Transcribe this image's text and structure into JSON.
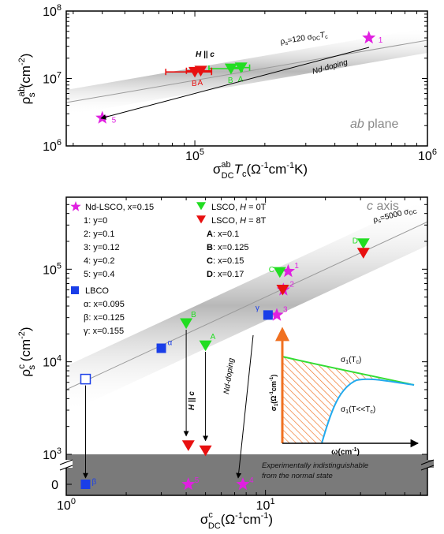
{
  "colors": {
    "magenta": "#e020e0",
    "red": "#e81010",
    "green": "#22dd22",
    "blue": "#1a3ee8",
    "band": "#bdbdbd",
    "gray_region": "#7a7a7a",
    "hatch": "#f07020",
    "orange": "#f07020",
    "cyan": "#22aaee",
    "inset_green": "#33dd33"
  },
  "chart_data": [
    {
      "type": "scatter",
      "title": "",
      "xlabel_main": "σ",
      "xlabel_sup": "ab",
      "xlabel_sub": "DC",
      "xlabel_rest": "T",
      "xlabel_rest_sub": "c",
      "xlabel_units": "(Ω",
      "xlabel_units_sup1": "-1",
      "xlabel_units_mid": "cm",
      "xlabel_units_sup2": "-1",
      "xlabel_units_end": "K)",
      "ylabel_main": "ρ",
      "ylabel_sup": "ab",
      "ylabel_sub": "s",
      "ylabel_units": "(cm",
      "ylabel_units_sup": "-2",
      "ylabel_units_end": ")",
      "xscale": "log",
      "yscale": "log",
      "xlim": [
        28000,
        1000000
      ],
      "ylim": [
        1000000,
        100000000
      ],
      "x_ticks": [
        {
          "value": 100000,
          "base": "10",
          "exp": "5"
        },
        {
          "value": 1000000,
          "base": "10",
          "exp": "6"
        }
      ],
      "y_ticks": [
        {
          "value": 1000000,
          "base": "10",
          "exp": "6"
        },
        {
          "value": 10000000,
          "base": "10",
          "exp": "7"
        },
        {
          "value": 100000000,
          "base": "10",
          "exp": "8"
        }
      ],
      "band_label": "ρ",
      "band_label_sub": "s",
      "band_label_rest": "=120 σ",
      "band_label_sub2": "DC",
      "band_label_end": "T",
      "band_label_sub3": "c",
      "band_coefficient": 120,
      "plane_label_italic": "ab",
      "plane_label_rest": " plane",
      "annotations": {
        "h_parallel": "H || c",
        "nd_doping": "Nd-doping"
      },
      "series": [
        {
          "name": "Nd-LSCO",
          "marker": "star",
          "color": "magenta",
          "points": [
            {
              "x": 560000,
              "y": 40000000,
              "label": "1"
            },
            {
              "x": 40000,
              "y": 2600000,
              "label": "5"
            }
          ]
        },
        {
          "name": "LSCO, H=0T",
          "marker": "triangle-down",
          "color": "green",
          "points": [
            {
              "x": 143000,
              "y": 14000000,
              "label": "B",
              "xerr": [
                115000,
                160000
              ]
            },
            {
              "x": 158000,
              "y": 14500000,
              "label": "A",
              "xerr": [
                145000,
                172000
              ]
            }
          ]
        },
        {
          "name": "LSCO, H=8T",
          "marker": "triangle-down",
          "color": "red",
          "points": [
            {
              "x": 100000,
              "y": 12500000,
              "label": "B",
              "xerr": [
                75000,
                118000
              ]
            },
            {
              "x": 106000,
              "y": 13000000,
              "label": "A",
              "xerr": [
                92000,
                118000
              ]
            }
          ]
        }
      ]
    },
    {
      "type": "scatter",
      "xlabel_main": "σ",
      "xlabel_sup": "c",
      "xlabel_sub": "DC",
      "xlabel_units": "(Ω",
      "xlabel_units_sup1": "-1",
      "xlabel_units_mid": "cm",
      "xlabel_units_sup2": "-1",
      "xlabel_units_end": ")",
      "ylabel_main": "ρ",
      "ylabel_sup": "c",
      "ylabel_sub": "s",
      "ylabel_units": " (cm",
      "ylabel_units_sup": "-2",
      "ylabel_units_end": ")",
      "xscale": "log",
      "yscale": "log (broken axis below 10^3)",
      "xlim": [
        1,
        65
      ],
      "ylim": [
        1000,
        600000
      ],
      "x_ticks": [
        {
          "value": 1,
          "base": "10",
          "exp": "0"
        },
        {
          "value": 10,
          "base": "10",
          "exp": "1"
        }
      ],
      "y_ticks": [
        {
          "value": 1000,
          "base": "10",
          "exp": "3"
        },
        {
          "value": 10000,
          "base": "10",
          "exp": "4"
        },
        {
          "value": 100000,
          "base": "10",
          "exp": "5"
        }
      ],
      "zero_tick": "0",
      "band_label": "ρ",
      "band_label_sub": "s",
      "band_label_rest": "=5000 σ",
      "band_label_sub2": "DC",
      "band_coefficient": 5000,
      "axis_label": "c axis",
      "gray_region_text": [
        "Experimentally indistinguishable",
        "from the normal state"
      ],
      "annotations": {
        "h_parallel": "H || c",
        "nd_doping": "Nd-doping"
      },
      "legend": {
        "nd_lsco_title": "Nd-LSCO, x=0.15",
        "nd_lsco_items": [
          "1: y=0",
          "2: y=0.1",
          "3: y=0.12",
          "4: y=0.2",
          "5: y=0.4"
        ],
        "lbco_title": "LBCO",
        "lbco_items": [
          "α: x=0.095",
          "β: x=0.125",
          "γ: x=0.155"
        ],
        "lsco_0t_pre": "LSCO, ",
        "lsco_0t_h": "H",
        "lsco_0t_post": " = 0T",
        "lsco_8t_pre": "LSCO, ",
        "lsco_8t_h": "H",
        "lsco_8t_post": " = 8T",
        "lsco_items": [
          {
            "key": "A",
            "text": ": x=0.1"
          },
          {
            "key": "B",
            "text": ": x=0.125"
          },
          {
            "key": "C",
            "text": ": x=0.15"
          },
          {
            "key": "D",
            "text": ": x=0.17"
          }
        ]
      },
      "series": [
        {
          "name": "Nd-LSCO",
          "marker": "star",
          "color": "magenta",
          "points": [
            {
              "x": 13.0,
              "y": 95000,
              "label": "1"
            },
            {
              "x": 12.3,
              "y": 60000,
              "label": "2"
            },
            {
              "x": 11.4,
              "y": 32000,
              "label": "3"
            },
            {
              "x": 7.7,
              "y": 0,
              "label": "4"
            },
            {
              "x": 4.1,
              "y": 0,
              "label": "5"
            }
          ]
        },
        {
          "name": "LBCO",
          "marker": "square",
          "color": "blue",
          "points": [
            {
              "x": 3.0,
              "y": 14000,
              "label": "α"
            },
            {
              "x": 1.25,
              "y": 0,
              "label": "β"
            },
            {
              "x": 10.3,
              "y": 32000,
              "label": "γ"
            }
          ]
        },
        {
          "name": "LBCO (H=0, β)",
          "marker": "square-open",
          "color": "blue",
          "points": [
            {
              "x": 1.25,
              "y": 6500,
              "label": ""
            }
          ]
        },
        {
          "name": "LSCO, H=0T",
          "marker": "triangle-down",
          "color": "green",
          "points": [
            {
              "x": 5.0,
              "y": 15000,
              "label": "A"
            },
            {
              "x": 4.0,
              "y": 26000,
              "label": "B"
            },
            {
              "x": 11.8,
              "y": 93000,
              "label": "C"
            },
            {
              "x": 31.0,
              "y": 190000,
              "label": "D"
            }
          ]
        },
        {
          "name": "LSCO, H=8T",
          "marker": "triangle-down",
          "color": "red",
          "points": [
            {
              "x": 12.2,
              "y": 60000,
              "label": ""
            },
            {
              "x": 31.0,
              "y": 150000,
              "label": ""
            },
            {
              "x": 4.1,
              "y": 1250,
              "label": ""
            },
            {
              "x": 5.0,
              "y": 1100,
              "label": ""
            }
          ]
        }
      ],
      "arrows": [
        {
          "from": {
            "x": 4.0,
            "y": 26000
          },
          "to": {
            "x": 4.0,
            "y": 1350
          }
        },
        {
          "from": {
            "x": 5.0,
            "y": 15000
          },
          "to": {
            "x": 5.0,
            "y": 1200
          }
        },
        {
          "from": {
            "x": 1.25,
            "y": 6500
          },
          "to": {
            "x": 1.25,
            "y": 0
          }
        }
      ],
      "inset": {
        "xlabel": "ω(cm",
        "xlabel_sup": "-1",
        "xlabel_end": ")",
        "ylabel": "σ",
        "ylabel_sub": "1",
        "ylabel_units": "(Ω",
        "ylabel_units_sup1": "-1",
        "ylabel_units_mid": "cm",
        "ylabel_units_sup2": "-1",
        "ylabel_units_end": ")",
        "curve1_label": "σ",
        "curve1_sub": "1",
        "curve1_rest": "(T",
        "curve1_sub2": "c",
        "curve1_end": ")",
        "curve2_label": "σ",
        "curve2_sub": "1",
        "curve2_rest": "(T<<T",
        "curve2_sub2": "c",
        "curve2_end": ")"
      }
    }
  ]
}
